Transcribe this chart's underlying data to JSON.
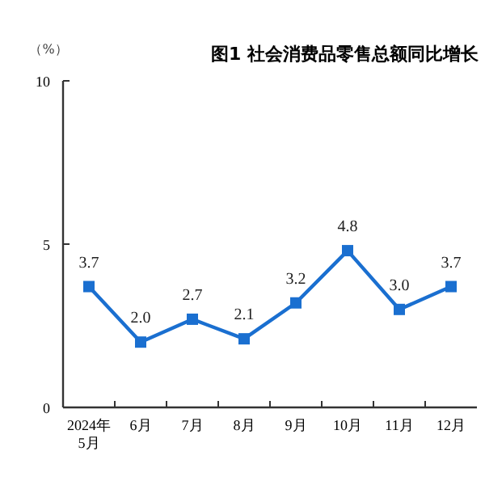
{
  "chart_data": {
    "type": "line",
    "title": "图1 社会消费品零售总额同比增长",
    "ylabel": "（%）",
    "categories": [
      "2024年\n5月",
      "6月",
      "7月",
      "8月",
      "9月",
      "10月",
      "11月",
      "12月"
    ],
    "series": [
      {
        "color": "#1a6fd0",
        "values": [
          3.7,
          2.0,
          2.7,
          2.1,
          3.2,
          4.8,
          3.0,
          3.7
        ],
        "value_labels": [
          "3.7",
          "2.0",
          "2.7",
          "2.1",
          "3.2",
          "4.8",
          "3.0",
          "3.7"
        ]
      }
    ],
    "ylim": [
      0,
      10
    ],
    "yticks": [
      0,
      5,
      10
    ],
    "grid": false,
    "marker": "square"
  }
}
